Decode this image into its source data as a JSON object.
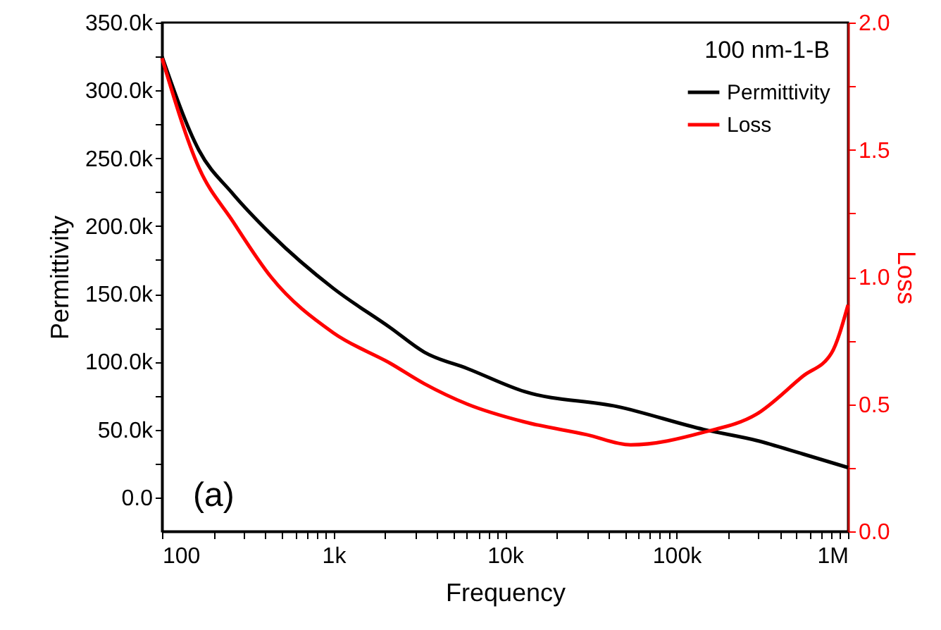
{
  "chart_data": {
    "type": "line",
    "xlabel": "Frequency",
    "ylabel": "Permittivity",
    "y2label": "Loss",
    "legend_title": "100 nm-1-B",
    "annotations": [
      "(a)"
    ],
    "log": "x",
    "grid": false,
    "legend": "top right",
    "marker": "none",
    "line_style": "solid",
    "xlim": [
      100,
      1000000
    ],
    "xticks": [
      {
        "value": 100,
        "label": "100"
      },
      {
        "value": 200,
        "label": null
      },
      {
        "value": 300,
        "label": null
      },
      {
        "value": 400,
        "label": null
      },
      {
        "value": 500,
        "label": null
      },
      {
        "value": 600,
        "label": null
      },
      {
        "value": 700,
        "label": null
      },
      {
        "value": 800,
        "label": null
      },
      {
        "value": 900,
        "label": null
      },
      {
        "value": 1000,
        "label": "1k"
      },
      {
        "value": 2000,
        "label": null
      },
      {
        "value": 3000,
        "label": null
      },
      {
        "value": 4000,
        "label": null
      },
      {
        "value": 5000,
        "label": null
      },
      {
        "value": 6000,
        "label": null
      },
      {
        "value": 7000,
        "label": null
      },
      {
        "value": 8000,
        "label": null
      },
      {
        "value": 9000,
        "label": null
      },
      {
        "value": 10000,
        "label": "10k"
      },
      {
        "value": 20000,
        "label": null
      },
      {
        "value": 30000,
        "label": null
      },
      {
        "value": 40000,
        "label": null
      },
      {
        "value": 50000,
        "label": null
      },
      {
        "value": 60000,
        "label": null
      },
      {
        "value": 70000,
        "label": null
      },
      {
        "value": 80000,
        "label": null
      },
      {
        "value": 90000,
        "label": null
      },
      {
        "value": 100000,
        "label": "100k"
      },
      {
        "value": 200000,
        "label": null
      },
      {
        "value": 300000,
        "label": null
      },
      {
        "value": 400000,
        "label": null
      },
      {
        "value": 500000,
        "label": null
      },
      {
        "value": 600000,
        "label": null
      },
      {
        "value": 700000,
        "label": null
      },
      {
        "value": 800000,
        "label": null
      },
      {
        "value": 900000,
        "label": null
      },
      {
        "value": 1000000,
        "label": "1M"
      }
    ],
    "ylim": [
      -25000,
      350000
    ],
    "yticks": [
      {
        "value": 0,
        "label": "0.0"
      },
      {
        "value": 25000,
        "label": null
      },
      {
        "value": 50000,
        "label": "50.0k"
      },
      {
        "value": 75000,
        "label": null
      },
      {
        "value": 100000,
        "label": "100.0k"
      },
      {
        "value": 125000,
        "label": null
      },
      {
        "value": 150000,
        "label": "150.0k"
      },
      {
        "value": 175000,
        "label": null
      },
      {
        "value": 200000,
        "label": "200.0k"
      },
      {
        "value": 225000,
        "label": null
      },
      {
        "value": 250000,
        "label": "250.0k"
      },
      {
        "value": 275000,
        "label": null
      },
      {
        "value": 300000,
        "label": "300.0k"
      },
      {
        "value": 325000,
        "label": null
      },
      {
        "value": 350000,
        "label": "350.0k"
      }
    ],
    "y2lim": [
      0,
      2
    ],
    "y2ticks": [
      {
        "value": 0,
        "label": "0.0"
      },
      {
        "value": 0.25,
        "label": null
      },
      {
        "value": 0.5,
        "label": "0.5"
      },
      {
        "value": 0.75,
        "label": null
      },
      {
        "value": 1,
        "label": "1.0"
      },
      {
        "value": 1.25,
        "label": null
      },
      {
        "value": 1.5,
        "label": "1.5"
      },
      {
        "value": 1.75,
        "label": null
      },
      {
        "value": 2,
        "label": "2.0"
      }
    ],
    "series": [
      {
        "name": "Permittivity",
        "color": "#000000",
        "x": [
          100,
          164,
          258,
          432,
          1000,
          2150,
          3390,
          6030,
          13000,
          45000,
          145000,
          292000,
          546000,
          1000000
        ],
        "values": [
          325000,
          256000,
          224000,
          194000,
          154000,
          125000,
          107000,
          95000,
          78000,
          67000,
          50000,
          42000,
          32000,
          22000
        ]
      },
      {
        "name": "Loss",
        "color": "#ff0000",
        "axis": "y2",
        "x": [
          100,
          164,
          258,
          432,
          1000,
          2150,
          3390,
          6030,
          13000,
          30000,
          54000,
          145000,
          292000,
          546000,
          800000,
          1000000
        ],
        "values": [
          1.86,
          1.43,
          1.22,
          1.0,
          0.78,
          0.66,
          0.58,
          0.5,
          0.43,
          0.38,
          0.34,
          0.39,
          0.46,
          0.61,
          0.7,
          0.89
        ]
      }
    ]
  }
}
